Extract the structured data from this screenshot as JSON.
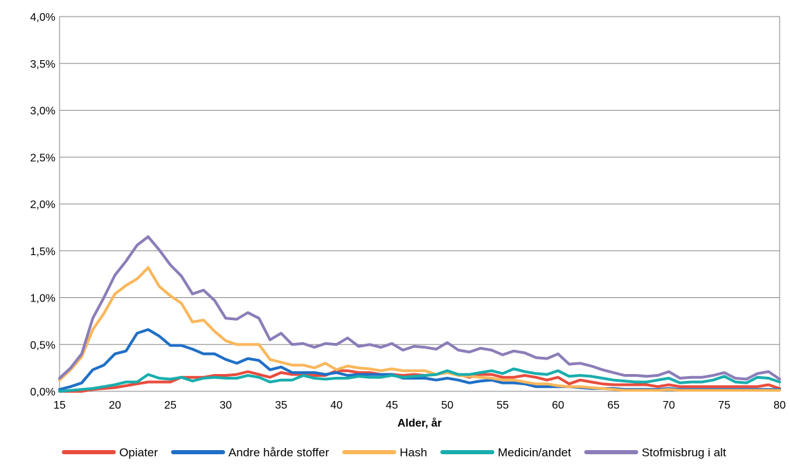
{
  "chart_data": {
    "type": "line",
    "title": "",
    "xlabel": "Alder, år",
    "ylabel": "",
    "xlim": [
      15,
      80
    ],
    "ylim": [
      0,
      4
    ],
    "x_ticks": [
      15,
      20,
      25,
      30,
      35,
      40,
      45,
      50,
      55,
      60,
      65,
      70,
      75,
      80
    ],
    "x_tick_labels": [
      "15",
      "20",
      "25",
      "30",
      "35",
      "40",
      "45",
      "50",
      "55",
      "60",
      "65",
      "70",
      "75",
      "80"
    ],
    "y_ticks": [
      0,
      0.5,
      1,
      1.5,
      2,
      2.5,
      3,
      3.5,
      4
    ],
    "y_tick_labels": [
      "0,0%",
      "0,5%",
      "1,0%",
      "1,5%",
      "2,0%",
      "2,5%",
      "3,0%",
      "3,5%",
      "4,0%"
    ],
    "grid": true,
    "legend_position": "bottom",
    "x": [
      15,
      16,
      17,
      18,
      19,
      20,
      21,
      22,
      23,
      24,
      25,
      26,
      27,
      28,
      29,
      30,
      31,
      32,
      33,
      34,
      35,
      36,
      37,
      38,
      39,
      40,
      41,
      42,
      43,
      44,
      45,
      46,
      47,
      48,
      49,
      50,
      51,
      52,
      53,
      54,
      55,
      56,
      57,
      58,
      59,
      60,
      61,
      62,
      63,
      64,
      65,
      66,
      67,
      68,
      69,
      70,
      71,
      72,
      73,
      74,
      75,
      76,
      77,
      78,
      79,
      80
    ],
    "series": [
      {
        "name": "Opiater",
        "color": "#e84c3d",
        "values": [
          0.0,
          0.0,
          0.0,
          0.02,
          0.03,
          0.04,
          0.06,
          0.08,
          0.1,
          0.1,
          0.1,
          0.15,
          0.15,
          0.15,
          0.17,
          0.17,
          0.18,
          0.21,
          0.18,
          0.15,
          0.2,
          0.18,
          0.18,
          0.17,
          0.17,
          0.22,
          0.22,
          0.2,
          0.2,
          0.18,
          0.18,
          0.17,
          0.18,
          0.17,
          0.18,
          0.2,
          0.18,
          0.15,
          0.18,
          0.18,
          0.15,
          0.15,
          0.17,
          0.15,
          0.12,
          0.15,
          0.08,
          0.12,
          0.1,
          0.08,
          0.07,
          0.07,
          0.07,
          0.07,
          0.05,
          0.07,
          0.05,
          0.05,
          0.05,
          0.05,
          0.05,
          0.05,
          0.05,
          0.05,
          0.07,
          0.03
        ]
      },
      {
        "name": "Andre hårde stoffer",
        "color": "#1f6fc6",
        "values": [
          0.02,
          0.05,
          0.09,
          0.23,
          0.28,
          0.4,
          0.43,
          0.62,
          0.66,
          0.59,
          0.49,
          0.49,
          0.45,
          0.4,
          0.4,
          0.34,
          0.3,
          0.35,
          0.33,
          0.23,
          0.26,
          0.2,
          0.2,
          0.2,
          0.18,
          0.2,
          0.17,
          0.18,
          0.18,
          0.18,
          0.18,
          0.14,
          0.14,
          0.14,
          0.12,
          0.14,
          0.12,
          0.09,
          0.11,
          0.12,
          0.09,
          0.09,
          0.08,
          0.05,
          0.05,
          0.05,
          0.05,
          0.04,
          0.03,
          0.03,
          0.03,
          0.02,
          0.02,
          0.02,
          0.02,
          0.03,
          0.02,
          0.02,
          0.02,
          0.02,
          0.02,
          0.02,
          0.02,
          0.02,
          0.02,
          0.02
        ]
      },
      {
        "name": "Hash",
        "color": "#f9b75b",
        "values": [
          0.12,
          0.23,
          0.37,
          0.66,
          0.83,
          1.04,
          1.13,
          1.2,
          1.32,
          1.12,
          1.02,
          0.94,
          0.74,
          0.76,
          0.64,
          0.54,
          0.5,
          0.5,
          0.5,
          0.34,
          0.31,
          0.28,
          0.28,
          0.25,
          0.3,
          0.23,
          0.27,
          0.25,
          0.24,
          0.22,
          0.24,
          0.22,
          0.22,
          0.22,
          0.18,
          0.2,
          0.17,
          0.16,
          0.15,
          0.14,
          0.12,
          0.12,
          0.1,
          0.08,
          0.08,
          0.06,
          0.05,
          0.05,
          0.04,
          0.03,
          0.02,
          0.01,
          0.01,
          0.01,
          0.01,
          0.02,
          0.01,
          0.01,
          0.01,
          0.01,
          0.01,
          0.01,
          0.01,
          0.01,
          0.01,
          0.01
        ]
      },
      {
        "name": "Medicin/andet",
        "color": "#1aadad",
        "values": [
          0.0,
          0.01,
          0.02,
          0.03,
          0.05,
          0.07,
          0.1,
          0.1,
          0.18,
          0.14,
          0.13,
          0.15,
          0.11,
          0.14,
          0.15,
          0.14,
          0.14,
          0.17,
          0.15,
          0.1,
          0.12,
          0.12,
          0.17,
          0.14,
          0.13,
          0.14,
          0.14,
          0.16,
          0.15,
          0.15,
          0.17,
          0.15,
          0.16,
          0.17,
          0.18,
          0.22,
          0.18,
          0.18,
          0.2,
          0.22,
          0.19,
          0.24,
          0.21,
          0.19,
          0.18,
          0.22,
          0.16,
          0.17,
          0.16,
          0.14,
          0.12,
          0.11,
          0.1,
          0.1,
          0.12,
          0.14,
          0.09,
          0.1,
          0.1,
          0.12,
          0.16,
          0.1,
          0.09,
          0.15,
          0.14,
          0.1
        ]
      },
      {
        "name": "Stofmisbrug i alt",
        "color": "#8b7db8",
        "values": [
          0.14,
          0.25,
          0.4,
          0.78,
          1.0,
          1.24,
          1.39,
          1.56,
          1.65,
          1.51,
          1.35,
          1.23,
          1.04,
          1.08,
          0.97,
          0.78,
          0.77,
          0.84,
          0.78,
          0.55,
          0.62,
          0.5,
          0.51,
          0.47,
          0.51,
          0.5,
          0.57,
          0.48,
          0.5,
          0.47,
          0.51,
          0.44,
          0.48,
          0.47,
          0.45,
          0.52,
          0.44,
          0.42,
          0.46,
          0.44,
          0.39,
          0.43,
          0.41,
          0.36,
          0.35,
          0.4,
          0.29,
          0.3,
          0.27,
          0.23,
          0.2,
          0.17,
          0.17,
          0.16,
          0.17,
          0.21,
          0.14,
          0.15,
          0.15,
          0.17,
          0.2,
          0.14,
          0.13,
          0.19,
          0.21,
          0.13
        ]
      }
    ]
  }
}
